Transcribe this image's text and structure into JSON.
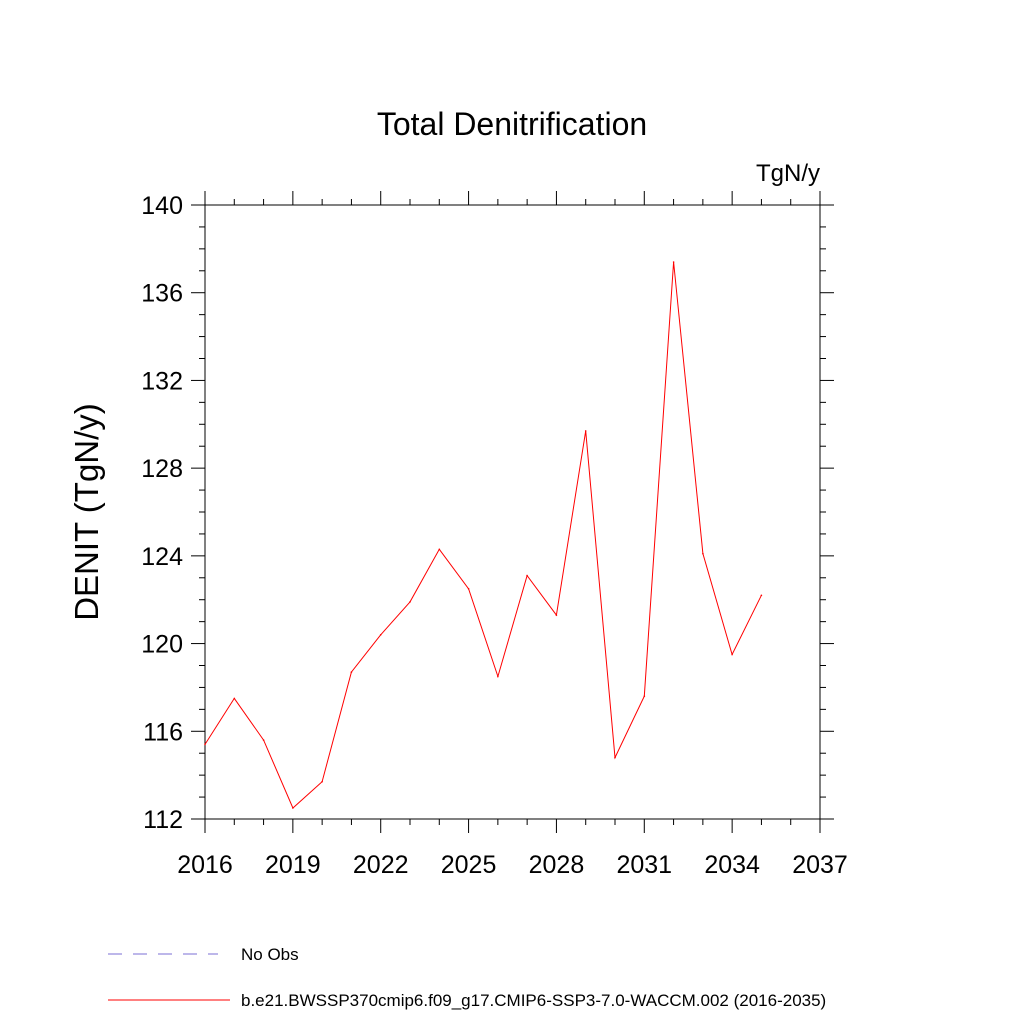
{
  "chart_data": {
    "type": "line",
    "title": "Total Denitrification",
    "units_label": "TgN/y",
    "xlabel": "",
    "ylabel": "DENIT  (TgN/y)",
    "xlim": [
      2016,
      2037
    ],
    "ylim": [
      112,
      140
    ],
    "x_major_ticks": [
      2016,
      2019,
      2022,
      2025,
      2028,
      2031,
      2034,
      2037
    ],
    "x_tick_labels": [
      "2016",
      "2019",
      "2022",
      "2025",
      "2028",
      "2031",
      "2034",
      "2037"
    ],
    "y_major_ticks": [
      112,
      116,
      120,
      124,
      128,
      132,
      136,
      140
    ],
    "y_tick_labels": [
      "112",
      "116",
      "120",
      "124",
      "128",
      "132",
      "136",
      "140"
    ],
    "grid": false,
    "legend_position": "bottom",
    "series": [
      {
        "name": "b.e21.BWSSP370cmip6.f09_g17.CMIP6-SSP3-7.0-WACCM.002 (2016-2035)",
        "color": "#ff0000",
        "style": "solid",
        "x": [
          2016,
          2017,
          2018,
          2019,
          2020,
          2021,
          2022,
          2023,
          2024,
          2025,
          2026,
          2027,
          2028,
          2029,
          2030,
          2031,
          2032,
          2033,
          2034,
          2035
        ],
        "y": [
          115.4,
          117.5,
          115.6,
          112.5,
          113.7,
          118.7,
          120.4,
          121.9,
          124.3,
          122.5,
          118.5,
          123.1,
          121.3,
          129.7,
          114.8,
          117.6,
          137.4,
          124.1,
          119.5,
          122.2
        ]
      }
    ],
    "legend": [
      {
        "label": "No Obs",
        "color": "#7b6fd6",
        "style": "dashed"
      },
      {
        "label": "b.e21.BWSSP370cmip6.f09_g17.CMIP6-SSP3-7.0-WACCM.002 (2016-2035)",
        "color": "#ff0000",
        "style": "solid"
      }
    ]
  }
}
